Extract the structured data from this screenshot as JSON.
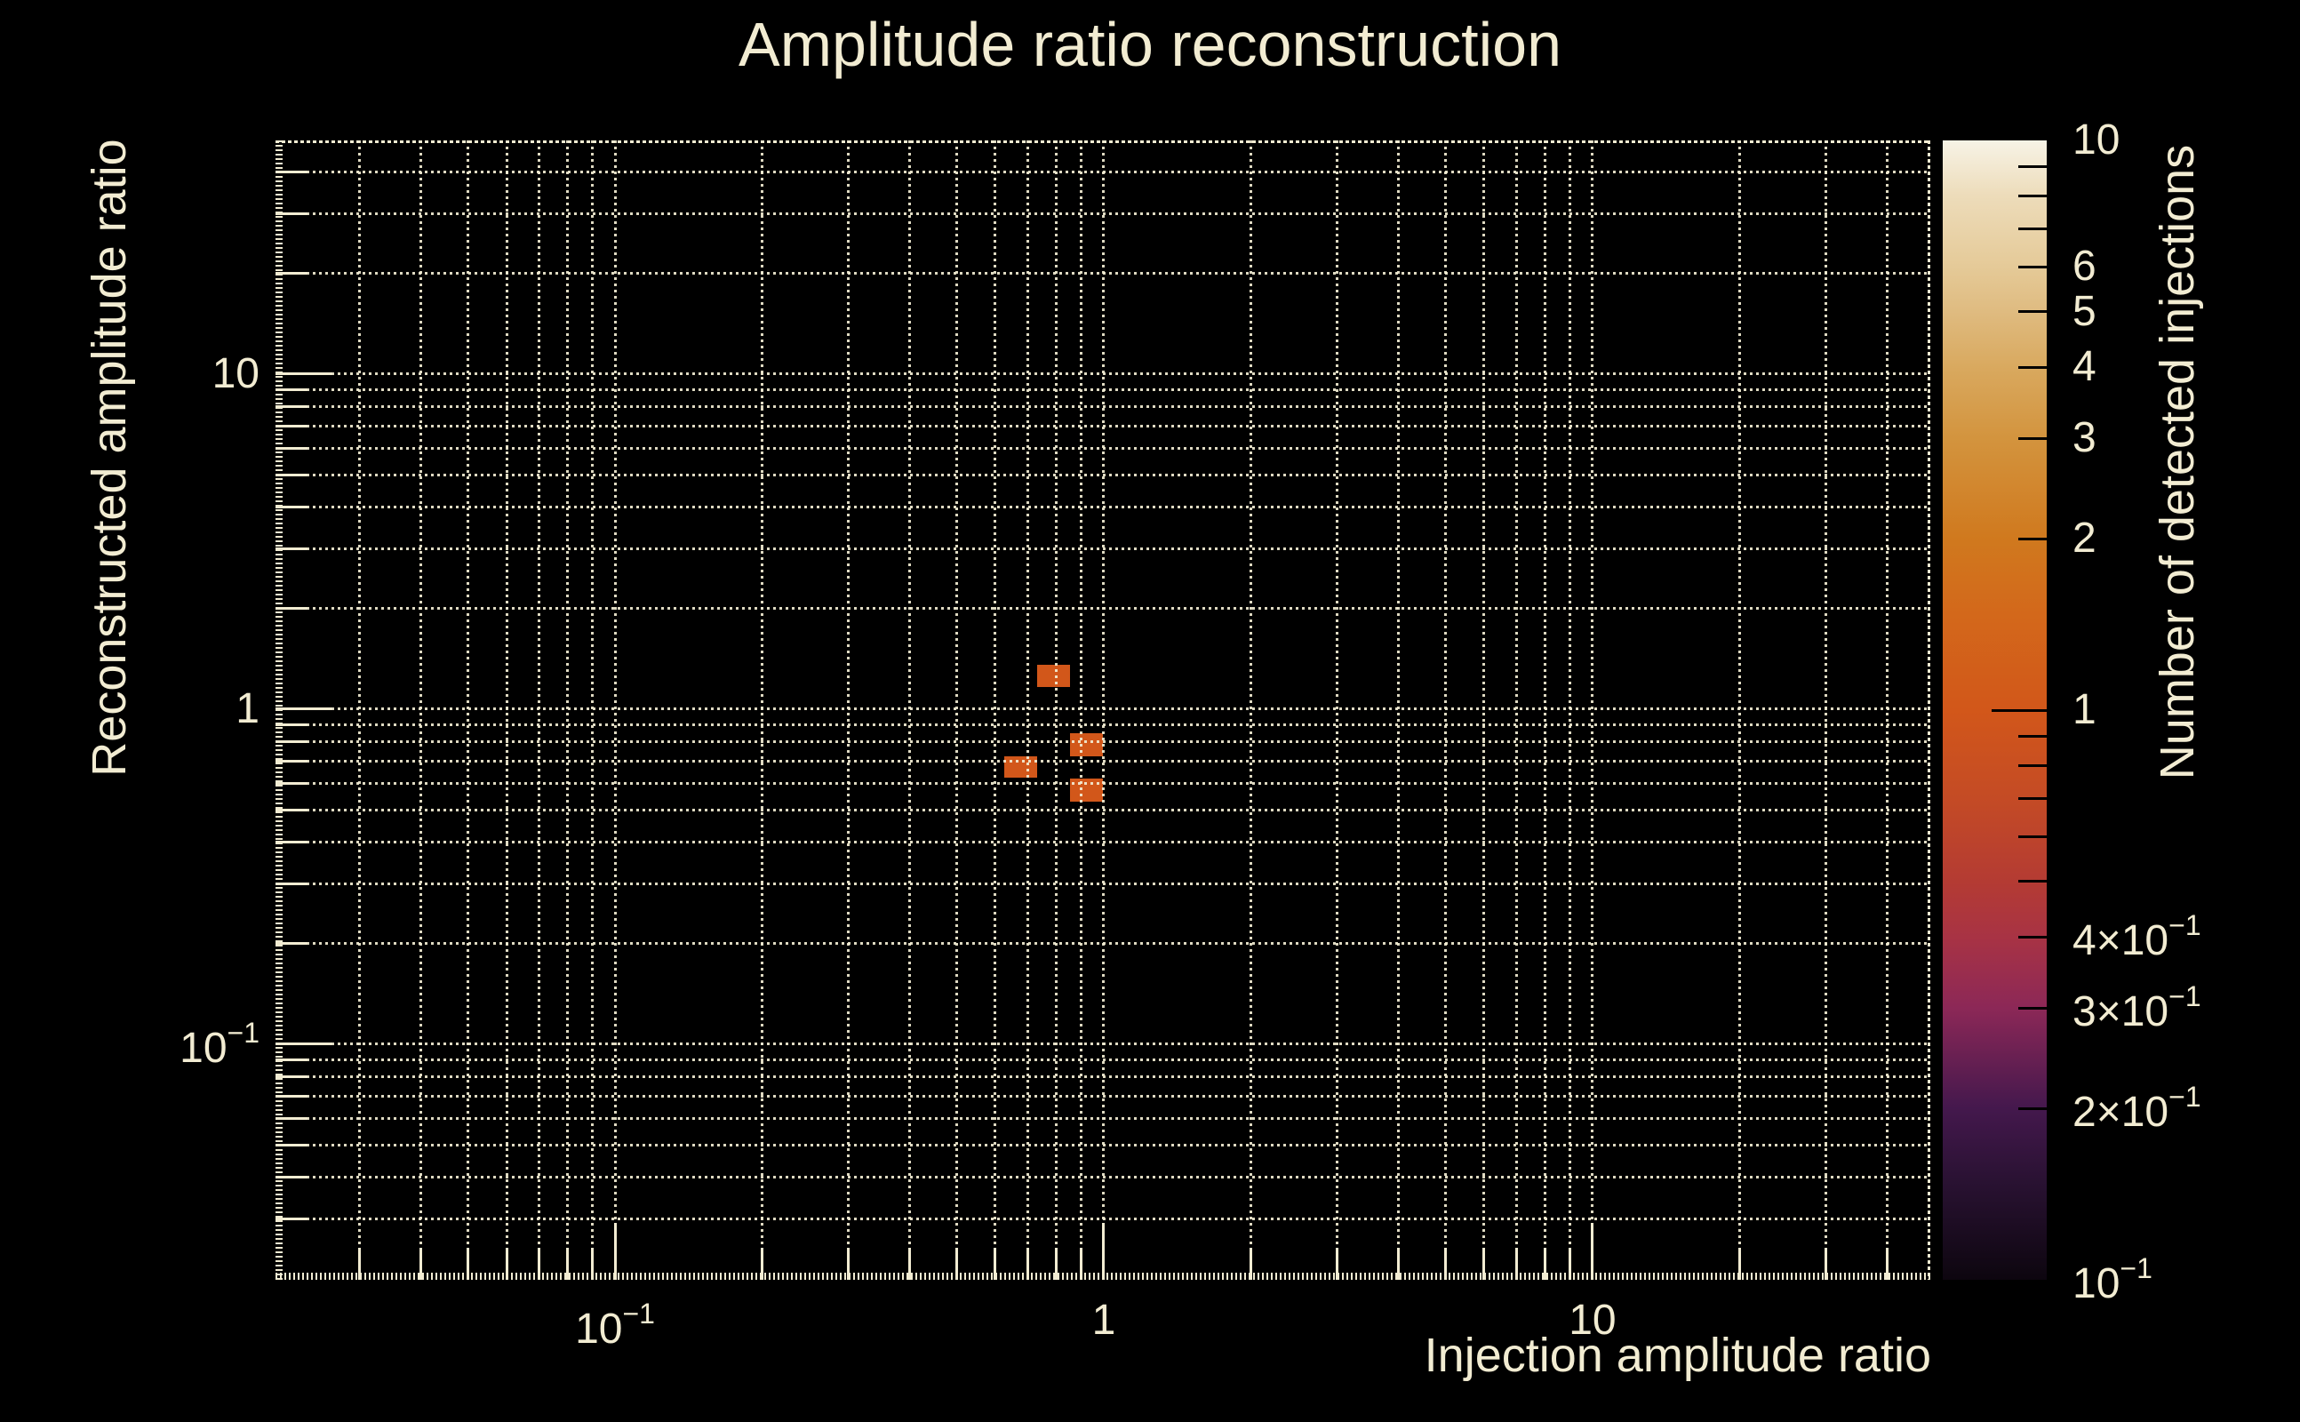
{
  "title": "Amplitude ratio reconstruction",
  "colors": {
    "background": "#000000",
    "text": "#f2ecd2",
    "frame": "#f2ecd2",
    "grid": "rgba(242,236,210,0.92)",
    "colorbar_tick": "#000000"
  },
  "chart_data": {
    "type": "heatmap",
    "title": "Amplitude ratio reconstruction",
    "xlabel": "Injection amplitude ratio",
    "ylabel": "Reconstructed amplitude ratio",
    "zlabel": "Number of detected injections",
    "xscale": "log",
    "yscale": "log",
    "zscale": "log",
    "xlim": [
      0.0202,
      49.1
    ],
    "ylim": [
      0.0198,
      49.8
    ],
    "zlim": [
      0.1,
      10
    ],
    "grid": {
      "style": "dotted",
      "on": true,
      "minor": true
    },
    "x_ticks": [
      {
        "v": 0.1,
        "label": "10",
        "exp": "−1"
      },
      {
        "v": 1,
        "label": "1"
      },
      {
        "v": 10,
        "label": "10"
      }
    ],
    "y_ticks": [
      {
        "v": 0.1,
        "label": "10",
        "exp": "−1"
      },
      {
        "v": 1,
        "label": "1"
      },
      {
        "v": 10,
        "label": "10"
      }
    ],
    "bins": [
      {
        "x": [
          0.731,
          0.853
        ],
        "y": [
          1.164,
          1.356
        ],
        "count": 1
      },
      {
        "x": [
          0.853,
          0.994
        ],
        "y": [
          0.723,
          0.847
        ],
        "count": 1
      },
      {
        "x": [
          0.626,
          0.731
        ],
        "y": [
          0.624,
          0.723
        ],
        "count": 1
      },
      {
        "x": [
          0.853,
          0.994
        ],
        "y": [
          0.529,
          0.62
        ],
        "count": 1
      }
    ],
    "bin_colors": {
      "1": "#d2571a"
    },
    "colorbar": {
      "ticks": [
        {
          "v": 10,
          "label": "10"
        },
        {
          "v": 6,
          "label": "6"
        },
        {
          "v": 5,
          "label": "5"
        },
        {
          "v": 4,
          "label": "4"
        },
        {
          "v": 3,
          "label": "3"
        },
        {
          "v": 2,
          "label": "2"
        },
        {
          "v": 1,
          "label": "1"
        },
        {
          "v": 0.4,
          "label": "4×10",
          "exp": "−1"
        },
        {
          "v": 0.3,
          "label": "3×10",
          "exp": "−1"
        },
        {
          "v": 0.2,
          "label": "2×10",
          "exp": "−1"
        },
        {
          "v": 0.1,
          "label": "10",
          "exp": "−1"
        }
      ],
      "gradient_stops": [
        {
          "v": 0.1,
          "color": "#0d060f"
        },
        {
          "v": 0.15,
          "color": "#2a1233"
        },
        {
          "v": 0.2,
          "color": "#44184d"
        },
        {
          "v": 0.3,
          "color": "#8c2857"
        },
        {
          "v": 0.4,
          "color": "#a83344"
        },
        {
          "v": 0.5,
          "color": "#b43b33"
        },
        {
          "v": 0.7,
          "color": "#c44b25"
        },
        {
          "v": 1,
          "color": "#d2571a"
        },
        {
          "v": 1.5,
          "color": "#d3691b"
        },
        {
          "v": 2,
          "color": "#d0791e"
        },
        {
          "v": 3,
          "color": "#d3943e"
        },
        {
          "v": 4,
          "color": "#d9a95f"
        },
        {
          "v": 5,
          "color": "#dfbb80"
        },
        {
          "v": 6,
          "color": "#e5ca98"
        },
        {
          "v": 8,
          "color": "#eddcba"
        },
        {
          "v": 10,
          "color": "#f7f3e6"
        }
      ]
    }
  }
}
